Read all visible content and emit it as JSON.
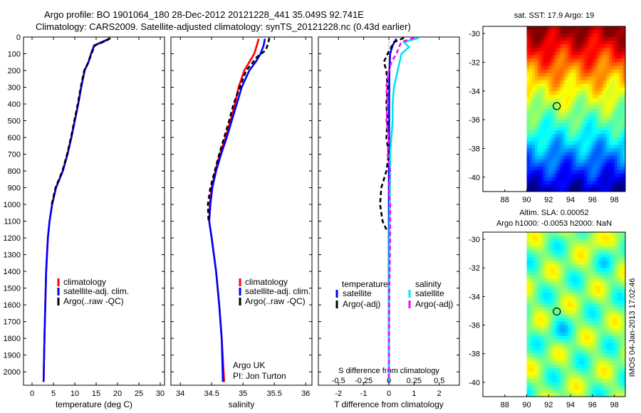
{
  "title_line1": "Argo profile: BO 1901064_180 28-Dec-2012 20121228_441 35.049S 92.741E",
  "title_line2": "Climatology: CARS2009. Satellite-adjusted climatology: synTS_20121228.nc (0.43d earlier)",
  "side_text": "IMOS 04-Jan-2013 17:02:46",
  "map_top_title": "sat. SST: 17.9 Argo: 19",
  "map_bottom_title1": "Altim. SLA: 0.00052",
  "map_bottom_title2": "Argo h1000: -0.0053 h2000: NaN",
  "argo_note1": "Argo UK",
  "argo_note2": "PI: Jon Turton",
  "colors": {
    "climatology": "#ff0000",
    "satellite": "#0000ff",
    "argo": "#000000",
    "sat_diff": "#00e5ee",
    "argo_diff": "#ff00ff"
  },
  "chart_data": [
    {
      "type": "line",
      "xlabel": "temperature (deg C)",
      "ylabel": "",
      "xlim": [
        -2,
        31
      ],
      "ylim": [
        2080,
        0
      ],
      "xticks": [
        0,
        5,
        10,
        15,
        20,
        25,
        30
      ],
      "yticks": [
        0,
        100,
        200,
        300,
        400,
        500,
        600,
        700,
        800,
        900,
        1000,
        1100,
        1200,
        1300,
        1400,
        1500,
        1600,
        1700,
        1800,
        1900,
        2000
      ],
      "legend": [
        "climatology",
        "satellite-adj. clim.",
        "Argo(..raw -QC)"
      ],
      "series": [
        {
          "name": "climatology",
          "color": "#ff0000",
          "dash": "none",
          "depth": [
            10,
            50,
            100,
            150,
            200,
            300,
            400,
            500,
            600,
            700,
            800,
            900,
            1000,
            1100,
            1200,
            1400,
            1600,
            1800,
            2060
          ],
          "values": [
            18,
            14.5,
            13.8,
            13.2,
            12.3,
            11.5,
            10.8,
            10,
            9.2,
            8.3,
            7.2,
            5.6,
            4.7,
            4.1,
            3.7,
            3.3,
            3.1,
            2.9,
            2.7
          ]
        },
        {
          "name": "satellite-adj. clim.",
          "color": "#0000ff",
          "dash": "none",
          "depth": [
            10,
            50,
            100,
            150,
            200,
            300,
            400,
            500,
            600,
            700,
            800,
            900,
            1000,
            1100,
            1200,
            1400,
            1600,
            1800,
            2060
          ],
          "values": [
            18.2,
            14.6,
            13.8,
            13.2,
            12.3,
            11.5,
            10.8,
            10,
            9.2,
            8.3,
            7.2,
            5.6,
            4.7,
            4.1,
            3.7,
            3.3,
            3.1,
            2.9,
            2.7
          ]
        },
        {
          "name": "Argo(..raw -QC)",
          "color": "#000000",
          "dash": "6,4",
          "depth": [
            5,
            20,
            50,
            100,
            150,
            200,
            300,
            400,
            500,
            600,
            700,
            800,
            900,
            1000
          ],
          "values": [
            18.3,
            17.5,
            14.7,
            13.9,
            13.2,
            12.2,
            11.4,
            10.7,
            9.9,
            9.1,
            8.2,
            7.1,
            5.5,
            4.6
          ]
        }
      ]
    },
    {
      "type": "line",
      "xlabel": "salinity",
      "ylabel": "",
      "xlim": [
        33.85,
        36.1
      ],
      "ylim": [
        2080,
        0
      ],
      "xticks": [
        34,
        34.5,
        35,
        35.5,
        36
      ],
      "legend": [
        "climatology",
        "satellite-adj. clim.",
        "Argo(..raw -QC)"
      ],
      "series": [
        {
          "name": "climatology",
          "color": "#ff0000",
          "dash": "none",
          "depth": [
            10,
            50,
            100,
            150,
            200,
            300,
            400,
            500,
            600,
            700,
            800,
            900,
            1000,
            1100,
            1200,
            1400,
            1600,
            1800,
            2060
          ],
          "values": [
            35.25,
            35.22,
            35.18,
            35.1,
            35.02,
            34.93,
            34.87,
            34.8,
            34.72,
            34.63,
            34.56,
            34.5,
            34.47,
            34.46,
            34.5,
            34.57,
            34.62,
            34.66,
            34.7
          ]
        },
        {
          "name": "satellite-adj. clim.",
          "color": "#0000ff",
          "dash": "none",
          "depth": [
            10,
            50,
            100,
            150,
            200,
            300,
            400,
            500,
            600,
            700,
            800,
            900,
            1000,
            1100,
            1200,
            1400,
            1600,
            1800,
            2060
          ],
          "values": [
            35.35,
            35.33,
            35.28,
            35.2,
            35.1,
            34.98,
            34.9,
            34.82,
            34.74,
            34.65,
            34.57,
            34.51,
            34.48,
            34.46,
            34.5,
            34.57,
            34.62,
            34.66,
            34.68
          ]
        },
        {
          "name": "Argo(..raw -QC)",
          "color": "#000000",
          "dash": "6,4",
          "depth": [
            5,
            40,
            80,
            120,
            160,
            200,
            300,
            400,
            500,
            600,
            700,
            800,
            900,
            1000,
            1100
          ],
          "values": [
            35.42,
            35.4,
            35.36,
            35.22,
            35.14,
            35.05,
            34.95,
            34.85,
            34.78,
            34.7,
            34.62,
            34.55,
            34.48,
            34.44,
            34.45
          ]
        }
      ]
    },
    {
      "type": "line",
      "xlabel": "T difference from climatology",
      "xlabel_top": "S difference from climatology",
      "xlim": [
        -2.8,
        2.8
      ],
      "ylim": [
        2080,
        0
      ],
      "xticks": [
        -2,
        -1,
        0,
        1,
        2
      ],
      "xticks_top": [
        "-0.5",
        "-0.25",
        "0",
        "0.25",
        "0.5"
      ],
      "legend_headers": [
        "temperature",
        "salinity"
      ],
      "legend": [
        "satellite",
        "Argo(-adj)",
        "satellite",
        "Argo(-adj)"
      ],
      "series": [
        {
          "name": "temperature satellite",
          "color": "#0000ff",
          "dash": "none",
          "depth": [
            10,
            50,
            100,
            200,
            400,
            600,
            800,
            1000,
            1200,
            1500,
            2060
          ],
          "values": [
            0.3,
            0.15,
            0.05,
            0.02,
            0.01,
            0.01,
            0,
            0,
            0,
            0,
            0
          ]
        },
        {
          "name": "temperature Argo(-adj)",
          "color": "#000000",
          "dash": "6,4",
          "depth": [
            5,
            30,
            60,
            100,
            150,
            200,
            300,
            400,
            500,
            600,
            700,
            800,
            900,
            1000,
            1100,
            1150
          ],
          "values": [
            0.6,
            0.2,
            0.1,
            -0.05,
            -0.2,
            -0.1,
            -0.05,
            -0.1,
            -0.05,
            -0.1,
            0,
            -0.1,
            -0.3,
            -0.35,
            -0.25,
            -0.1
          ]
        },
        {
          "name": "salinity satellite",
          "color": "#00e5ee",
          "dash": "none",
          "depth": [
            5,
            30,
            60,
            100,
            200,
            300,
            400,
            500,
            600,
            700,
            800,
            1000,
            1200,
            1500,
            2060
          ],
          "values": [
            1.2,
            0.6,
            0.8,
            0.5,
            0.35,
            0.2,
            0.15,
            0.15,
            0.1,
            0.05,
            0.05,
            0.03,
            0.02,
            0.01,
            0
          ]
        },
        {
          "name": "salinity Argo(-adj)",
          "color": "#ff00ff",
          "dash": "6,4",
          "depth": [
            5,
            30,
            60,
            100,
            150,
            200,
            300,
            400,
            500,
            600,
            700,
            800,
            900,
            1000,
            1200,
            1500,
            2060
          ],
          "values": [
            1.0,
            0.5,
            0.4,
            0.3,
            0.1,
            0.0,
            -0.1,
            -0.05,
            -0.1,
            0,
            -0.05,
            0.05,
            0,
            0.05,
            0.05,
            0.02,
            0
          ]
        }
      ]
    },
    {
      "type": "heatmap",
      "title": "sat. SST: 17.9 Argo: 19",
      "xlim": [
        86,
        99
      ],
      "ylim": [
        -41,
        -29.5
      ],
      "xticks": [
        88,
        90,
        92,
        94,
        96,
        98
      ],
      "yticks": [
        -30,
        -32,
        -34,
        -36,
        -38,
        -40
      ],
      "data_extent_x": [
        90,
        99
      ],
      "marker": [
        92.741,
        -35.049
      ],
      "colormap": "jet"
    },
    {
      "type": "heatmap",
      "title": "Altim. SLA: 0.00052",
      "xlim": [
        86,
        99
      ],
      "ylim": [
        -41,
        -29.5
      ],
      "xticks": [
        88,
        90,
        92,
        94,
        96,
        98
      ],
      "yticks": [
        -30,
        -32,
        -34,
        -36,
        -38,
        -40
      ],
      "data_extent_x": [
        90,
        99
      ],
      "marker": [
        92.741,
        -35.049
      ],
      "colormap": "jet"
    }
  ]
}
